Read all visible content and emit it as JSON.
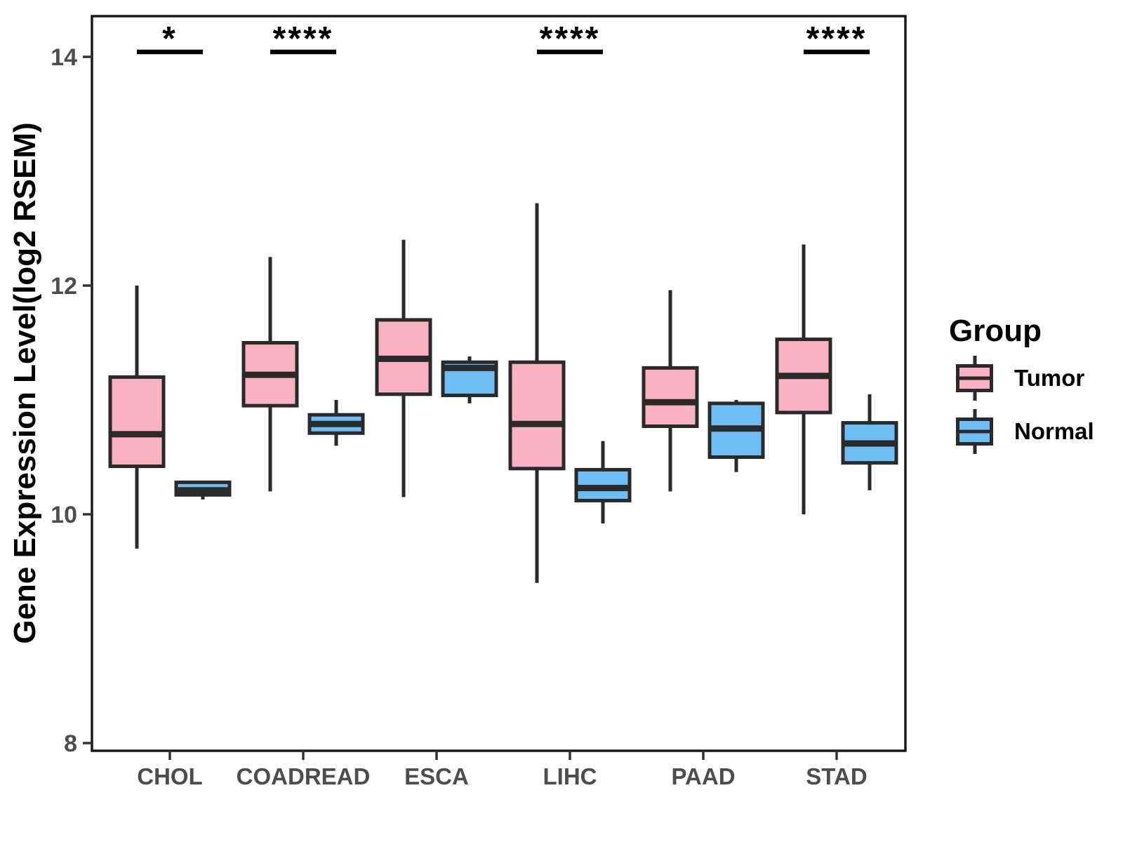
{
  "figure": {
    "background": "#ffffff"
  },
  "chart_data": {
    "type": "boxplot",
    "title": "",
    "xlabel": "",
    "ylabel": "Gene Expression Level(log2 RSEM)",
    "ylim": [
      7.6,
      14.4
    ],
    "yticks": [
      8,
      10,
      12,
      14
    ],
    "grid": false,
    "categories": [
      "CHOL",
      "COADREAD",
      "ESCA",
      "LIHC",
      "PAAD",
      "STAD"
    ],
    "groups": [
      "Tumor",
      "Normal"
    ],
    "colors": {
      "Tumor": "#FAB1C4",
      "Normal": "#6EBDF5"
    },
    "box_border_color": "#2a2a2a",
    "axis_text_color": "#4d4d4d",
    "panel_border_color": "#1a1a1a",
    "series": [
      {
        "category": "CHOL",
        "group": "Tumor",
        "min": 9.7,
        "q1": 10.42,
        "median": 10.7,
        "q3": 11.2,
        "max": 12.0
      },
      {
        "category": "CHOL",
        "group": "Normal",
        "min": 10.13,
        "q1": 10.17,
        "median": 10.21,
        "q3": 10.28,
        "max": 10.28
      },
      {
        "category": "COADREAD",
        "group": "Tumor",
        "min": 10.2,
        "q1": 10.95,
        "median": 11.22,
        "q3": 11.5,
        "max": 12.25
      },
      {
        "category": "COADREAD",
        "group": "Normal",
        "min": 10.6,
        "q1": 10.71,
        "median": 10.79,
        "q3": 10.87,
        "max": 11.0
      },
      {
        "category": "ESCA",
        "group": "Tumor",
        "min": 10.15,
        "q1": 11.05,
        "median": 11.36,
        "q3": 11.7,
        "max": 12.4
      },
      {
        "category": "ESCA",
        "group": "Normal",
        "min": 10.97,
        "q1": 11.04,
        "median": 11.28,
        "q3": 11.33,
        "max": 11.38
      },
      {
        "category": "LIHC",
        "group": "Tumor",
        "min": 9.4,
        "q1": 10.4,
        "median": 10.79,
        "q3": 11.33,
        "max": 12.72
      },
      {
        "category": "LIHC",
        "group": "Normal",
        "min": 9.92,
        "q1": 10.12,
        "median": 10.23,
        "q3": 10.39,
        "max": 10.64
      },
      {
        "category": "PAAD",
        "group": "Tumor",
        "min": 10.2,
        "q1": 10.77,
        "median": 10.98,
        "q3": 11.28,
        "max": 11.96
      },
      {
        "category": "PAAD",
        "group": "Normal",
        "min": 10.37,
        "q1": 10.5,
        "median": 10.75,
        "q3": 10.97,
        "max": 11.0
      },
      {
        "category": "STAD",
        "group": "Tumor",
        "min": 10.0,
        "q1": 10.89,
        "median": 11.21,
        "q3": 11.53,
        "max": 12.36
      },
      {
        "category": "STAD",
        "group": "Normal",
        "min": 10.21,
        "q1": 10.45,
        "median": 10.62,
        "q3": 10.8,
        "max": 11.05
      }
    ],
    "significance": [
      {
        "category": "CHOL",
        "label": "*"
      },
      {
        "category": "COADREAD",
        "label": "****"
      },
      {
        "category": "LIHC",
        "label": "****"
      },
      {
        "category": "STAD",
        "label": "****"
      }
    ],
    "legend": {
      "title": "Group",
      "position": "right",
      "items": [
        {
          "label": "Tumor",
          "color": "#FAB1C4"
        },
        {
          "label": "Normal",
          "color": "#6EBDF5"
        }
      ]
    }
  }
}
